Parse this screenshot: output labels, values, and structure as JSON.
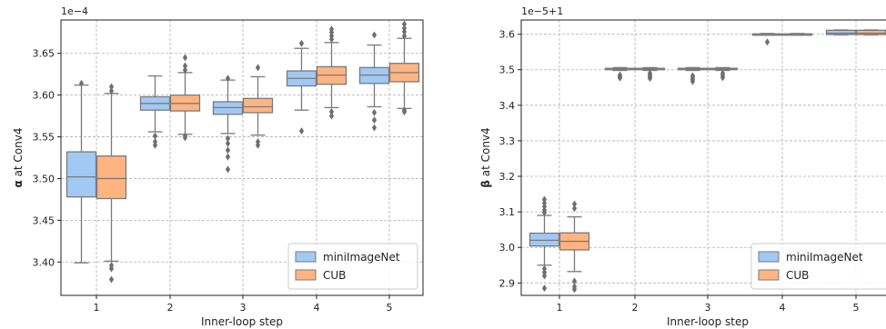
{
  "chart_data": [
    {
      "type": "box",
      "xlabel": "Inner-loop step",
      "ylabel_bold": "α",
      "ylabel_rest": " at Conv4",
      "offset_text": "1e−4",
      "categories": [
        "1",
        "2",
        "3",
        "4",
        "5"
      ],
      "yticks": [
        "3.40",
        "3.45",
        "3.50",
        "3.55",
        "3.60",
        "3.65"
      ],
      "ylim": [
        3.36,
        3.69
      ],
      "ytick_values": [
        3.4,
        3.45,
        3.5,
        3.55,
        3.6,
        3.65
      ],
      "grid": true,
      "legend_position": "lower right",
      "series": [
        {
          "name": "miniImageNet",
          "color": "#a1c9f4",
          "boxes": [
            {
              "q1": 3.478,
              "median": 3.502,
              "q3": 3.532,
              "whislo": 3.399,
              "whishi": 3.612,
              "fliers": [
                3.614
              ]
            },
            {
              "q1": 3.582,
              "median": 3.59,
              "q3": 3.598,
              "whislo": 3.556,
              "whishi": 3.623,
              "fliers": [
                3.551,
                3.544,
                3.54
              ]
            },
            {
              "q1": 3.577,
              "median": 3.585,
              "q3": 3.592,
              "whislo": 3.554,
              "whishi": 3.618,
              "fliers": [
                3.548,
                3.542,
                3.534,
                3.526,
                3.511,
                3.62
              ]
            },
            {
              "q1": 3.611,
              "median": 3.62,
              "q3": 3.629,
              "whislo": 3.582,
              "whishi": 3.656,
              "fliers": [
                3.662,
                3.557
              ]
            },
            {
              "q1": 3.614,
              "median": 3.624,
              "q3": 3.633,
              "whislo": 3.586,
              "whishi": 3.66,
              "fliers": [
                3.672,
                3.579,
                3.57,
                3.561
              ]
            }
          ]
        },
        {
          "name": "CUB",
          "color": "#ffb482",
          "boxes": [
            {
              "q1": 3.476,
              "median": 3.5,
              "q3": 3.527,
              "whislo": 3.401,
              "whishi": 3.602,
              "fliers": [
                3.61,
                3.605,
                3.396,
                3.392,
                3.379
              ]
            },
            {
              "q1": 3.581,
              "median": 3.59,
              "q3": 3.6,
              "whislo": 3.553,
              "whishi": 3.627,
              "fliers": [
                3.645,
                3.635,
                3.63,
                3.551,
                3.549
              ]
            },
            {
              "q1": 3.579,
              "median": 3.586,
              "q3": 3.596,
              "whislo": 3.552,
              "whishi": 3.622,
              "fliers": [
                3.633,
                3.544,
                3.54
              ]
            },
            {
              "q1": 3.613,
              "median": 3.624,
              "q3": 3.634,
              "whislo": 3.585,
              "whishi": 3.663,
              "fliers": [
                3.679,
                3.675,
                3.671,
                3.667,
                3.58,
                3.575
              ]
            },
            {
              "q1": 3.616,
              "median": 3.627,
              "q3": 3.638,
              "whislo": 3.584,
              "whishi": 3.668,
              "fliers": [
                3.685,
                3.68,
                3.676,
                3.671,
                3.582,
                3.58
              ]
            }
          ]
        }
      ]
    },
    {
      "type": "box",
      "xlabel": "Inner-loop step",
      "ylabel_bold": "β",
      "ylabel_rest": " at Conv4",
      "offset_text": "1e−5+1",
      "categories": [
        "1",
        "2",
        "3",
        "4",
        "5"
      ],
      "yticks": [
        "2.9",
        "3.0",
        "3.1",
        "3.2",
        "3.3",
        "3.4",
        "3.5",
        "3.6"
      ],
      "ylim": [
        2.865,
        3.64
      ],
      "ytick_values": [
        2.9,
        3.0,
        3.1,
        3.2,
        3.3,
        3.4,
        3.5,
        3.6
      ],
      "grid": true,
      "legend_position": "lower right",
      "series": [
        {
          "name": "miniImageNet",
          "color": "#a1c9f4",
          "boxes": [
            {
              "q1": 3.004,
              "median": 3.02,
              "q3": 3.04,
              "whislo": 2.95,
              "whishi": 3.09,
              "fliers": [
                3.135,
                3.125,
                3.115,
                3.105,
                3.098,
                2.94,
                2.93,
                2.92,
                2.885
              ]
            },
            {
              "q1": 3.501,
              "median": 3.503,
              "q3": 3.504,
              "whislo": 3.498,
              "whishi": 3.506,
              "fliers": [
                3.485,
                3.48,
                3.477
              ]
            },
            {
              "q1": 3.501,
              "median": 3.502,
              "q3": 3.504,
              "whislo": 3.498,
              "whishi": 3.506,
              "fliers": [
                3.483,
                3.478,
                3.472,
                3.467
              ]
            },
            {
              "q1": 3.599,
              "median": 3.6,
              "q3": 3.601,
              "whislo": 3.598,
              "whishi": 3.602,
              "fliers": [
                3.578
              ]
            },
            {
              "q1": 3.599,
              "median": 3.603,
              "q3": 3.611,
              "whislo": 3.598,
              "whishi": 3.612,
              "fliers": []
            }
          ]
        },
        {
          "name": "CUB",
          "color": "#ffb482",
          "boxes": [
            {
              "q1": 2.993,
              "median": 3.017,
              "q3": 3.041,
              "whislo": 2.932,
              "whishi": 3.086,
              "fliers": [
                3.122,
                3.11,
                2.905,
                2.89,
                2.882
              ]
            },
            {
              "q1": 3.501,
              "median": 3.503,
              "q3": 3.504,
              "whislo": 3.498,
              "whishi": 3.506,
              "fliers": [
                3.49,
                3.485,
                3.48,
                3.476
              ]
            },
            {
              "q1": 3.501,
              "median": 3.503,
              "q3": 3.504,
              "whislo": 3.498,
              "whishi": 3.506,
              "fliers": [
                3.49,
                3.484,
                3.478
              ]
            },
            {
              "q1": 3.599,
              "median": 3.6,
              "q3": 3.601,
              "whislo": 3.598,
              "whishi": 3.602,
              "fliers": []
            },
            {
              "q1": 3.599,
              "median": 3.603,
              "q3": 3.611,
              "whislo": 3.598,
              "whishi": 3.612,
              "fliers": []
            }
          ]
        }
      ]
    }
  ]
}
